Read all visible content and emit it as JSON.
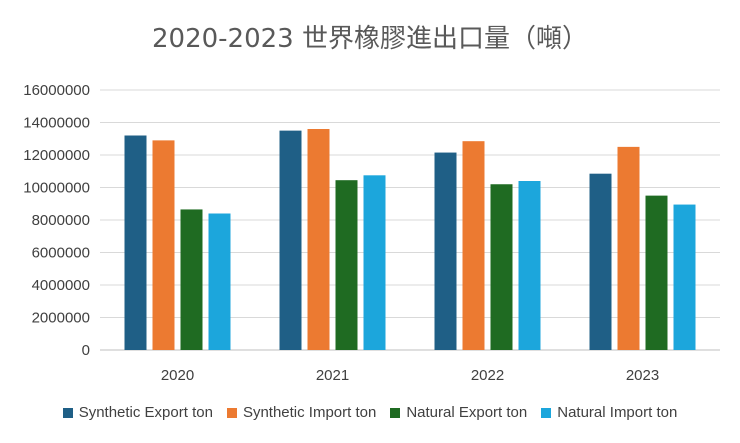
{
  "chart_data": {
    "type": "bar",
    "title": "2020-2023 世界橡膠進出口量（噸）",
    "xlabel": "",
    "ylabel": "",
    "ylim": [
      0,
      16000000
    ],
    "yticks": [
      "0",
      "2000000",
      "4000000",
      "6000000",
      "8000000",
      "10000000",
      "12000000",
      "14000000",
      "16000000"
    ],
    "categories": [
      "2020",
      "2021",
      "2022",
      "2023"
    ],
    "grid": true,
    "legend_position": "bottom",
    "series": [
      {
        "name": "Synthetic Export ton",
        "color": "#1f5f86",
        "values": [
          13200000,
          13500000,
          12150000,
          10850000
        ]
      },
      {
        "name": "Synthetic Import ton",
        "color": "#ec7a31",
        "values": [
          12900000,
          13600000,
          12850000,
          12500000
        ]
      },
      {
        "name": "Natural Export ton",
        "color": "#1f6b22",
        "values": [
          8650000,
          10450000,
          10200000,
          9500000
        ]
      },
      {
        "name": "Natural Import ton",
        "color": "#1ca6dc",
        "values": [
          8400000,
          10750000,
          10400000,
          8950000
        ]
      }
    ]
  }
}
